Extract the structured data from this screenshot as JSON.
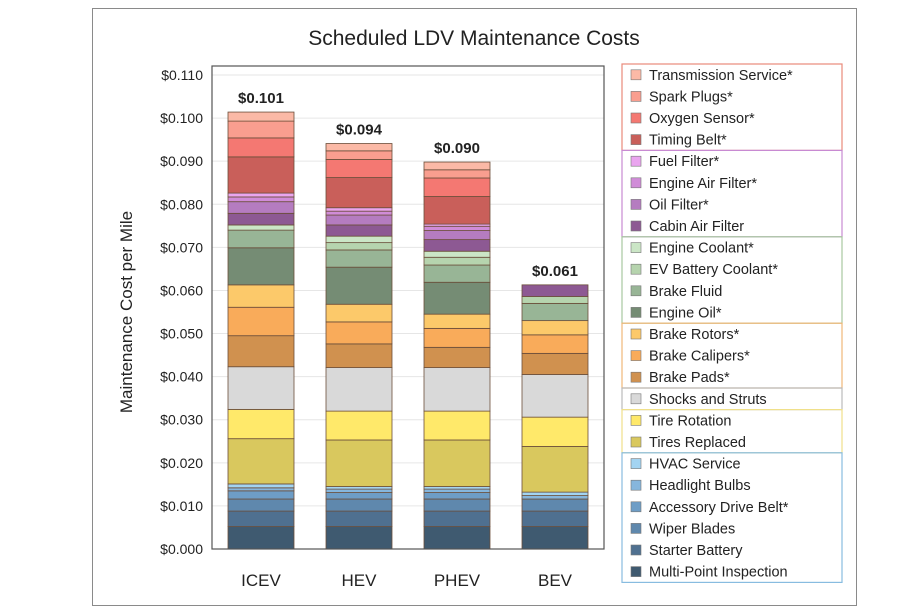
{
  "chart_data": {
    "type": "bar",
    "stacked": true,
    "title": "Scheduled LDV Maintenance Costs",
    "xlabel": "",
    "ylabel": "Maintenance Cost per Mile",
    "ylim": [
      0,
      0.11
    ],
    "ytick_step": 0.01,
    "ytick_format": "$0.000",
    "grid": true,
    "legend_placement": "right",
    "categories": [
      "ICEV",
      "HEV",
      "PHEV",
      "BEV"
    ],
    "totals_labels": [
      "$0.101",
      "$0.094",
      "$0.090",
      "$0.061"
    ],
    "series": [
      {
        "name": "Multi-Point Inspection",
        "color": "#3f5a70",
        "values": [
          0.0052,
          0.0052,
          0.0052,
          0.0052
        ]
      },
      {
        "name": "Starter Battery",
        "color": "#4f7090",
        "values": [
          0.0036,
          0.0036,
          0.0036,
          0.0036
        ]
      },
      {
        "name": "Wiper Blades",
        "color": "#5f88ad",
        "values": [
          0.0028,
          0.0028,
          0.0028,
          0.0028
        ]
      },
      {
        "name": "Accessory Drive Belt*",
        "color": "#6e9dc6",
        "values": [
          0.0019,
          0.0015,
          0.0015,
          0.0
        ]
      },
      {
        "name": "Headlight Bulbs",
        "color": "#86b6dd",
        "values": [
          0.0007,
          0.0008,
          0.0008,
          0.0008
        ]
      },
      {
        "name": "HVAC Service",
        "color": "#a3d4f2",
        "values": [
          0.0009,
          0.0006,
          0.0006,
          0.0008
        ]
      },
      {
        "name": "Tires Replaced",
        "color": "#d9c85e",
        "values": [
          0.0105,
          0.0108,
          0.0108,
          0.0106
        ]
      },
      {
        "name": "Tire Rotation",
        "color": "#ffe96a",
        "values": [
          0.0068,
          0.0067,
          0.0067,
          0.0068
        ]
      },
      {
        "name": "Shocks and Struts",
        "color": "#d9d9d9",
        "values": [
          0.0099,
          0.0101,
          0.0101,
          0.0099
        ]
      },
      {
        "name": "Brake Pads*",
        "color": "#d0914f",
        "values": [
          0.0072,
          0.0055,
          0.0047,
          0.0049
        ]
      },
      {
        "name": "Brake Calipers*",
        "color": "#f9ab5a",
        "values": [
          0.0066,
          0.0051,
          0.0044,
          0.0043
        ]
      },
      {
        "name": "Brake Rotors*",
        "color": "#fcc96a",
        "values": [
          0.0052,
          0.0041,
          0.0033,
          0.0033
        ]
      },
      {
        "name": "Engine Oil*",
        "color": "#758c74",
        "values": [
          0.0086,
          0.0086,
          0.0074,
          0.0
        ]
      },
      {
        "name": "Brake Fluid",
        "color": "#98b596",
        "values": [
          0.0041,
          0.004,
          0.004,
          0.004
        ]
      },
      {
        "name": "EV Battery Coolant*",
        "color": "#b6d4ae",
        "values": [
          0.0,
          0.0017,
          0.0018,
          0.0016
        ]
      },
      {
        "name": "Engine Coolant*",
        "color": "#cbe6c6",
        "values": [
          0.0012,
          0.0015,
          0.0014,
          0.0
        ]
      },
      {
        "name": "Cabin Air Filter",
        "color": "#8d5993",
        "values": [
          0.0027,
          0.0026,
          0.0027,
          0.0027
        ]
      },
      {
        "name": "Oil Filter*",
        "color": "#b57cc0",
        "values": [
          0.0027,
          0.0023,
          0.0021,
          0.0
        ]
      },
      {
        "name": "Engine Air Filter*",
        "color": "#d08cd8",
        "values": [
          0.0011,
          0.0009,
          0.001,
          0.0
        ]
      },
      {
        "name": "Fuel Filter*",
        "color": "#eaa5ef",
        "values": [
          0.0009,
          0.0008,
          0.0005,
          0.0
        ]
      },
      {
        "name": "Timing Belt*",
        "color": "#c95f5a",
        "values": [
          0.0084,
          0.007,
          0.0064,
          0.0
        ]
      },
      {
        "name": "Oxygen Sensor*",
        "color": "#f47872",
        "values": [
          0.0044,
          0.0042,
          0.0043,
          0.0
        ]
      },
      {
        "name": "Spark Plugs*",
        "color": "#f99e8f",
        "values": [
          0.0039,
          0.002,
          0.0019,
          0.0
        ]
      },
      {
        "name": "Transmission Service*",
        "color": "#fbb9a6",
        "values": [
          0.0021,
          0.0017,
          0.0018,
          0.0
        ]
      }
    ],
    "legend_groups": [
      {
        "color": "#e88a7a",
        "items": [
          "Transmission Service*",
          "Spark Plugs*",
          "Oxygen Sensor*",
          "Timing Belt*"
        ]
      },
      {
        "color": "#c88ad2",
        "items": [
          "Fuel Filter*",
          "Engine Air Filter*",
          "Oil Filter*",
          "Cabin Air Filter"
        ]
      },
      {
        "color": "#a8c8a0",
        "items": [
          "Engine Coolant*",
          "EV Battery Coolant*",
          "Brake Fluid",
          "Engine Oil*"
        ]
      },
      {
        "color": "#f0b878",
        "items": [
          "Brake Rotors*",
          "Brake Calipers*",
          "Brake Pads*"
        ]
      },
      {
        "color": "#bbbbbb",
        "items": [
          "Shocks and Struts"
        ]
      },
      {
        "color": "#f0e08a",
        "items": [
          "Tire Rotation",
          "Tires Replaced"
        ]
      },
      {
        "color": "#88bce0",
        "items": [
          "HVAC Service",
          "Headlight Bulbs",
          "Accessory Drive Belt*",
          "Wiper Blades",
          "Starter Battery",
          "Multi-Point Inspection"
        ]
      }
    ]
  }
}
